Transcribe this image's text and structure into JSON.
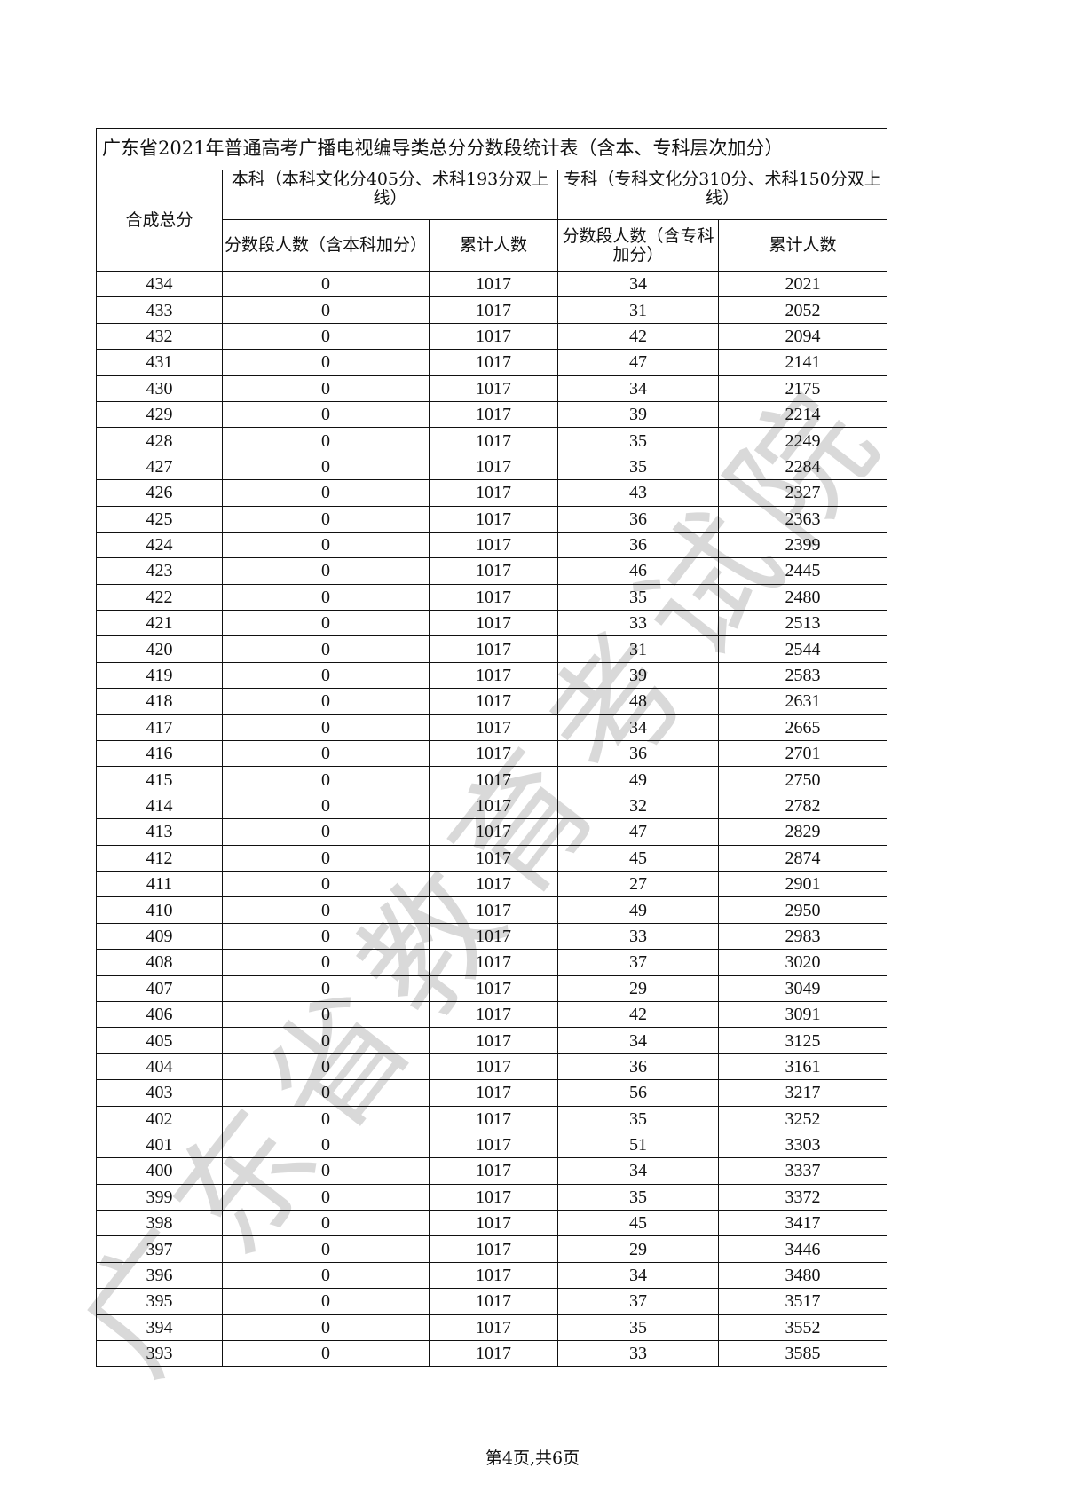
{
  "table": {
    "title": "广东省2021年普通高考广播电视编导类总分分数段统计表（含本、专科层次加分）",
    "col_score": "合成总分",
    "group_benke": "本科（本科文化分405分、术科193分双上线）",
    "group_zhuanke": "专科（专科文化分310分、术科150分双上线）",
    "benke_count": "分数段人数（含本科加分）",
    "benke_cum": "累计人数",
    "zhuanke_count": "分数段人数（含专科加分）",
    "zhuanke_cum": "累计人数",
    "rows": [
      [
        "434",
        "0",
        "1017",
        "34",
        "2021"
      ],
      [
        "433",
        "0",
        "1017",
        "31",
        "2052"
      ],
      [
        "432",
        "0",
        "1017",
        "42",
        "2094"
      ],
      [
        "431",
        "0",
        "1017",
        "47",
        "2141"
      ],
      [
        "430",
        "0",
        "1017",
        "34",
        "2175"
      ],
      [
        "429",
        "0",
        "1017",
        "39",
        "2214"
      ],
      [
        "428",
        "0",
        "1017",
        "35",
        "2249"
      ],
      [
        "427",
        "0",
        "1017",
        "35",
        "2284"
      ],
      [
        "426",
        "0",
        "1017",
        "43",
        "2327"
      ],
      [
        "425",
        "0",
        "1017",
        "36",
        "2363"
      ],
      [
        "424",
        "0",
        "1017",
        "36",
        "2399"
      ],
      [
        "423",
        "0",
        "1017",
        "46",
        "2445"
      ],
      [
        "422",
        "0",
        "1017",
        "35",
        "2480"
      ],
      [
        "421",
        "0",
        "1017",
        "33",
        "2513"
      ],
      [
        "420",
        "0",
        "1017",
        "31",
        "2544"
      ],
      [
        "419",
        "0",
        "1017",
        "39",
        "2583"
      ],
      [
        "418",
        "0",
        "1017",
        "48",
        "2631"
      ],
      [
        "417",
        "0",
        "1017",
        "34",
        "2665"
      ],
      [
        "416",
        "0",
        "1017",
        "36",
        "2701"
      ],
      [
        "415",
        "0",
        "1017",
        "49",
        "2750"
      ],
      [
        "414",
        "0",
        "1017",
        "32",
        "2782"
      ],
      [
        "413",
        "0",
        "1017",
        "47",
        "2829"
      ],
      [
        "412",
        "0",
        "1017",
        "45",
        "2874"
      ],
      [
        "411",
        "0",
        "1017",
        "27",
        "2901"
      ],
      [
        "410",
        "0",
        "1017",
        "49",
        "2950"
      ],
      [
        "409",
        "0",
        "1017",
        "33",
        "2983"
      ],
      [
        "408",
        "0",
        "1017",
        "37",
        "3020"
      ],
      [
        "407",
        "0",
        "1017",
        "29",
        "3049"
      ],
      [
        "406",
        "0",
        "1017",
        "42",
        "3091"
      ],
      [
        "405",
        "0",
        "1017",
        "34",
        "3125"
      ],
      [
        "404",
        "0",
        "1017",
        "36",
        "3161"
      ],
      [
        "403",
        "0",
        "1017",
        "56",
        "3217"
      ],
      [
        "402",
        "0",
        "1017",
        "35",
        "3252"
      ],
      [
        "401",
        "0",
        "1017",
        "51",
        "3303"
      ],
      [
        "400",
        "0",
        "1017",
        "34",
        "3337"
      ],
      [
        "399",
        "0",
        "1017",
        "35",
        "3372"
      ],
      [
        "398",
        "0",
        "1017",
        "45",
        "3417"
      ],
      [
        "397",
        "0",
        "1017",
        "29",
        "3446"
      ],
      [
        "396",
        "0",
        "1017",
        "34",
        "3480"
      ],
      [
        "395",
        "0",
        "1017",
        "37",
        "3517"
      ],
      [
        "394",
        "0",
        "1017",
        "35",
        "3552"
      ],
      [
        "393",
        "0",
        "1017",
        "33",
        "3585"
      ]
    ]
  },
  "footer": "第4页,共6页",
  "watermark": "广东省教育考试院"
}
